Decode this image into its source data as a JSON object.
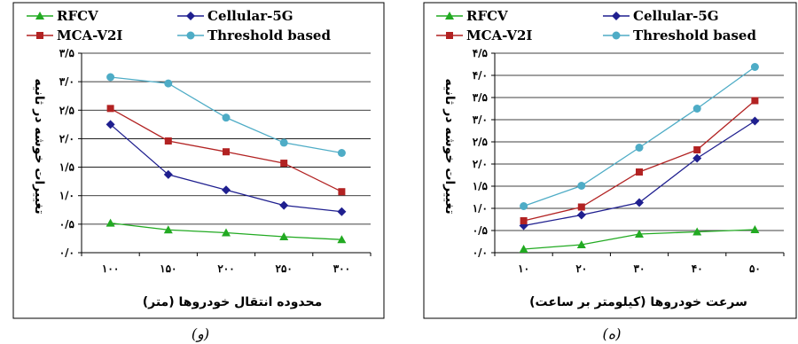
{
  "chart_data": [
    {
      "type": "line",
      "caption": "(و)",
      "xlabel": "محدوده انتقال خودروها (متر)",
      "ylabel": "تغییرات خوشه در ثانیه",
      "x_tick_labels": [
        "۱۰۰",
        "۱۵۰",
        "۲۰۰",
        "۲۵۰",
        "۳۰۰"
      ],
      "x": [
        100,
        150,
        200,
        250,
        300
      ],
      "ylim": [
        0,
        3.5
      ],
      "y_tick_labels": [
        "۰/۰",
        "۰/۵",
        "۱/۰",
        "۱/۵",
        "۲/۰",
        "۲/۵",
        "۳/۰",
        "۳/۵"
      ],
      "y_ticks": [
        0,
        0.5,
        1,
        1.5,
        2,
        2.5,
        3,
        3.5
      ],
      "grid": "horizontal",
      "series": [
        {
          "name": "RFCV",
          "color": "#22aa22",
          "marker": "triangle",
          "values": [
            0.52,
            0.4,
            0.35,
            0.28,
            0.23
          ]
        },
        {
          "name": "Cellular-5G",
          "color": "#1f1f8f",
          "marker": "diamond",
          "values": [
            2.25,
            1.37,
            1.1,
            0.83,
            0.72
          ]
        },
        {
          "name": "MCA-V2I",
          "color": "#b22222",
          "marker": "square",
          "values": [
            2.53,
            1.96,
            1.77,
            1.57,
            1.07
          ]
        },
        {
          "name": "Threshold based",
          "color": "#4eacc6",
          "marker": "circle",
          "values": [
            3.08,
            2.97,
            2.37,
            1.93,
            1.75
          ]
        }
      ]
    },
    {
      "type": "line",
      "caption": "(ه)",
      "xlabel": "سرعت خودروها (کیلومتر بر ساعت)",
      "ylabel": "تغییرات خوشه در ثانیه",
      "x_tick_labels": [
        "۱۰",
        "۲۰",
        "۳۰",
        "۴۰",
        "۵۰"
      ],
      "x": [
        10,
        20,
        30,
        40,
        50
      ],
      "ylim": [
        0,
        4.5
      ],
      "y_tick_labels": [
        "۰/۰",
        "۰/۵",
        "۱/۰",
        "۱/۵",
        "۲/۰",
        "۲/۵",
        "۳/۰",
        "۳/۵",
        "۴/۰",
        "۴/۵"
      ],
      "y_ticks": [
        0,
        0.5,
        1,
        1.5,
        2,
        2.5,
        3,
        3.5,
        4,
        4.5
      ],
      "grid": "horizontal",
      "series": [
        {
          "name": "RFCV",
          "color": "#22aa22",
          "marker": "triangle",
          "values": [
            0.08,
            0.18,
            0.42,
            0.47,
            0.52
          ]
        },
        {
          "name": "Cellular-5G",
          "color": "#1f1f8f",
          "marker": "diamond",
          "values": [
            0.61,
            0.85,
            1.13,
            2.13,
            2.97
          ]
        },
        {
          "name": "MCA-V2I",
          "color": "#b22222",
          "marker": "square",
          "values": [
            0.72,
            1.03,
            1.82,
            2.32,
            3.43
          ]
        },
        {
          "name": "Threshold based",
          "color": "#4eacc6",
          "marker": "circle",
          "values": [
            1.05,
            1.51,
            2.37,
            3.25,
            4.19
          ]
        }
      ]
    }
  ]
}
